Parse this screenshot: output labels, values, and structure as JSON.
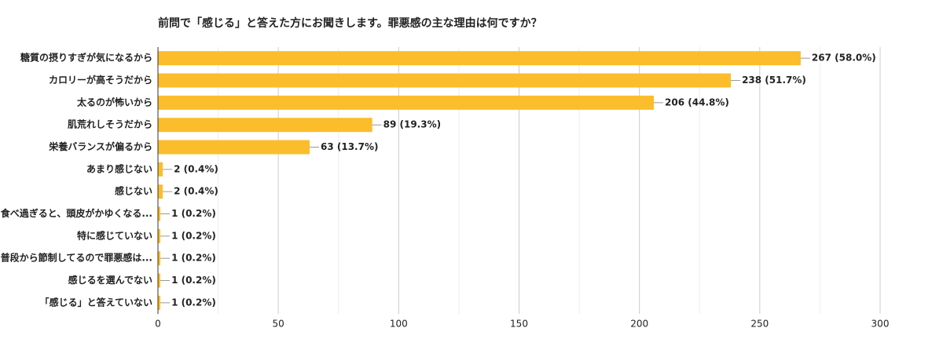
{
  "chart_data": {
    "type": "bar",
    "orientation": "horizontal",
    "title": "前問で「感じる」と答えた方にお聞きします。罪悪感の主な理由は何ですか？",
    "categories": [
      "糖質の摂りすぎが気になるから",
      "カロリーが高そうだから",
      "太るのが怖いから",
      "肌荒れしそうだから",
      "栄養バランスが偏るから",
      "あまり感じない",
      "感じない",
      "食べ過ぎると、頭皮がかゆくなる...",
      "特に感じていない",
      "普段から節制してるので罪悪感は...",
      "感じるを選んでない",
      "「感じる」と答えていない"
    ],
    "values": [
      267,
      238,
      206,
      89,
      63,
      2,
      2,
      1,
      1,
      1,
      1,
      1
    ],
    "value_labels": [
      "267 (58.0%)",
      "238 (51.7%)",
      "206 (44.8%)",
      "89 (19.3%)",
      "63 (13.7%)",
      "2 (0.4%)",
      "2 (0.4%)",
      "1 (0.2%)",
      "1 (0.2%)",
      "1 (0.2%)",
      "1 (0.2%)",
      "1 (0.2%)"
    ],
    "color": "#fbbd2c",
    "xlim": [
      0,
      300
    ],
    "xticks": [
      0,
      50,
      100,
      150,
      200,
      250,
      300
    ],
    "minor_gridlines": [
      25,
      75,
      125,
      175,
      225,
      275
    ],
    "grid": true
  }
}
